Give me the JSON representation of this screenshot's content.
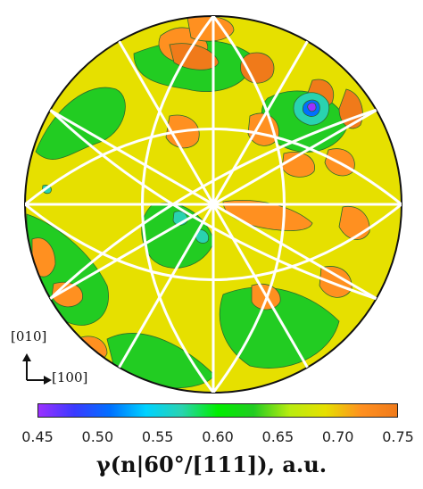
{
  "chart_data": {
    "type": "heatmap",
    "projection": "stereographic pole figure",
    "colorbar": {
      "min": 0.45,
      "max": 0.75,
      "ticks": [
        "0.45",
        "0.50",
        "0.55",
        "0.60",
        "0.65",
        "0.70",
        "0.75"
      ],
      "colors": [
        "#9b30ff",
        "#3a3aff",
        "#0070ff",
        "#00d2ff",
        "#29d3b0",
        "#00ee00",
        "#22cc22",
        "#b8ec10",
        "#e6e000",
        "#ff9020",
        "#f07a1a"
      ],
      "title": "γ(n|60°/[111]), a.u."
    },
    "axes_labels": {
      "vertical": "[010]",
      "horizontal": "[100]"
    },
    "background_level": 0.67,
    "regions": [
      {
        "level": 0.7,
        "desc": "upper-left lobe"
      },
      {
        "level": 0.72,
        "desc": "top lobe"
      },
      {
        "level": 0.73,
        "desc": "upper-right lobes"
      },
      {
        "level": 0.72,
        "desc": "right lobes"
      },
      {
        "level": 0.72,
        "desc": "lower-left lobes"
      },
      {
        "level": 0.71,
        "desc": "center-right band"
      },
      {
        "level": 0.47,
        "desc": "minimum near upper-right"
      }
    ]
  }
}
